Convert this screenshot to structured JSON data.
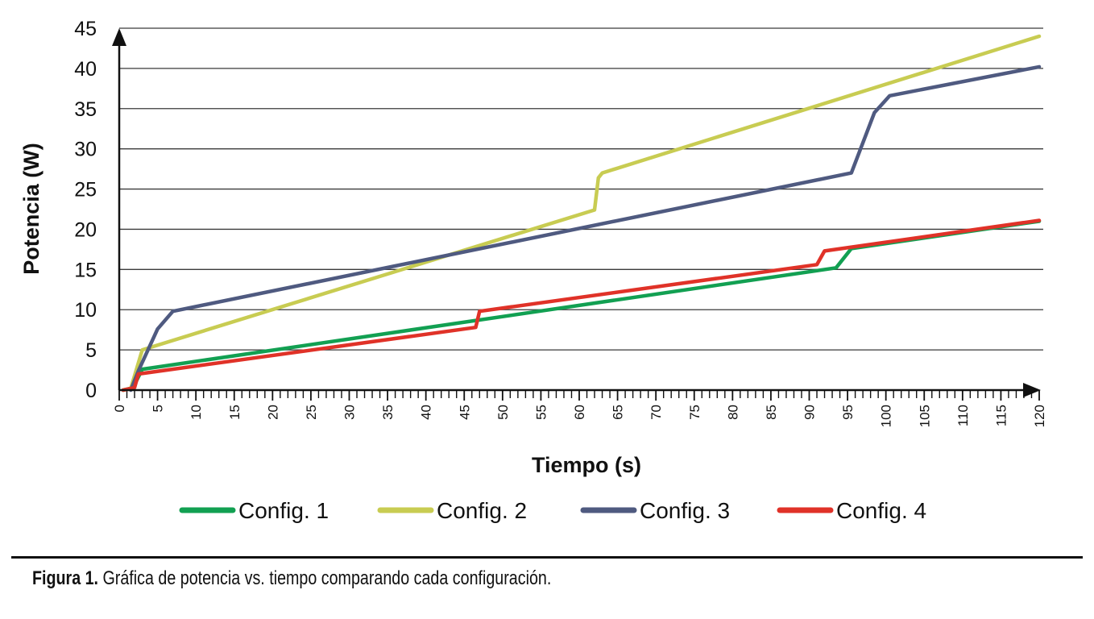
{
  "chart_data": {
    "type": "line",
    "title": "",
    "xlabel": "Tiempo (s)",
    "ylabel": "Potencia (W)",
    "xlim": [
      0,
      120
    ],
    "ylim": [
      0,
      45
    ],
    "x_ticks": [
      "0",
      "5",
      "10",
      "15",
      "20",
      "25",
      "30",
      "35",
      "40",
      "45",
      "50",
      "55",
      "60",
      "65",
      "70",
      "75",
      "80",
      "85",
      "90",
      "95",
      "100",
      "105",
      "110",
      "115",
      "120"
    ],
    "y_ticks": [
      "0",
      "5",
      "10",
      "15",
      "20",
      "25",
      "30",
      "35",
      "40",
      "45"
    ],
    "grid": "horizontal",
    "legend_position": "bottom",
    "series": [
      {
        "name": "Config. 1",
        "color": "#12a052",
        "points": [
          [
            0.5,
            0
          ],
          [
            1.8,
            0.3
          ],
          [
            3,
            2.6
          ],
          [
            93.5,
            15.2
          ],
          [
            95.5,
            17.6
          ],
          [
            120,
            21
          ]
        ]
      },
      {
        "name": "Config. 2",
        "color": "#c8cc52",
        "points": [
          [
            0.5,
            0
          ],
          [
            1.5,
            0.2
          ],
          [
            3,
            5
          ],
          [
            62,
            22.4
          ],
          [
            62.5,
            26.4
          ],
          [
            63,
            27
          ],
          [
            120,
            44
          ]
        ]
      },
      {
        "name": "Config. 3",
        "color": "#4f5a80",
        "points": [
          [
            1.5,
            0
          ],
          [
            2.5,
            2.4
          ],
          [
            5,
            7.6
          ],
          [
            7,
            9.8
          ],
          [
            95.5,
            27
          ],
          [
            98.5,
            34.5
          ],
          [
            100.5,
            36.6
          ],
          [
            120,
            40.2
          ]
        ]
      },
      {
        "name": "Config. 4",
        "color": "#e03228",
        "points": [
          [
            0.5,
            0
          ],
          [
            2,
            0.3
          ],
          [
            2.5,
            2
          ],
          [
            46.5,
            7.8
          ],
          [
            47,
            9.8
          ],
          [
            91,
            15.6
          ],
          [
            92,
            17.3
          ],
          [
            120,
            21.1
          ]
        ]
      }
    ]
  },
  "caption": {
    "label": "Figura 1.",
    "text": " Gráfica de potencia vs. tiempo comparando cada configuración."
  }
}
